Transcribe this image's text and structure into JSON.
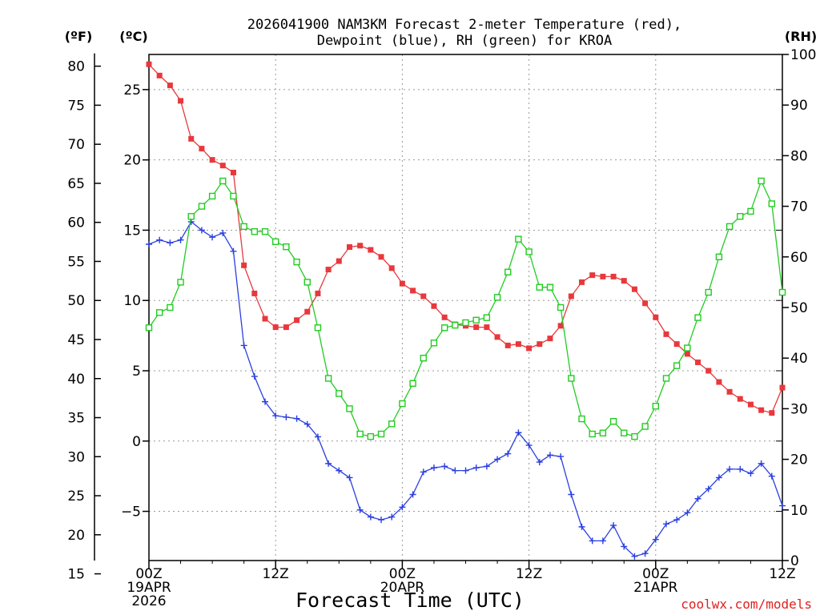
{
  "chart_data": {
    "type": "line",
    "title_lines": [
      "2026041900 NAM3KM Forecast 2-meter Temperature (red),",
      "Dewpoint (blue), RH (green) for KROA"
    ],
    "xlabel": "Forecast Time (UTC)",
    "credit": "coolwx.com/models",
    "unit_labels": {
      "fahrenheit": "(ºF)",
      "celsius": "(ºC)",
      "rh": "(RH)"
    },
    "x_range_hours": [
      0,
      60
    ],
    "x_ticks": [
      {
        "hour": 0,
        "lines": [
          "00Z",
          "19APR",
          "2026"
        ]
      },
      {
        "hour": 12,
        "lines": [
          "12Z"
        ]
      },
      {
        "hour": 24,
        "lines": [
          "00Z",
          "20APR"
        ]
      },
      {
        "hour": 36,
        "lines": [
          "12Z"
        ]
      },
      {
        "hour": 48,
        "lines": [
          "00Z",
          "21APR"
        ]
      },
      {
        "hour": 60,
        "lines": [
          "12Z"
        ]
      }
    ],
    "y_celsius": {
      "range": [
        -8.5,
        27.5
      ],
      "ticks": [
        -5,
        0,
        5,
        10,
        15,
        20,
        25
      ],
      "labels": [
        "−5",
        "0",
        "5",
        "10",
        "15",
        "20",
        "25"
      ]
    },
    "y_fahrenheit": {
      "ticks": [
        15,
        20,
        25,
        30,
        35,
        40,
        45,
        50,
        55,
        60,
        65,
        70,
        75,
        80
      ],
      "labels": [
        "15",
        "20",
        "25",
        "30",
        "35",
        "40",
        "45",
        "50",
        "55",
        "60",
        "65",
        "70",
        "75",
        "80"
      ]
    },
    "y_rh": {
      "range": [
        0,
        100
      ],
      "ticks": [
        0,
        10,
        20,
        30,
        40,
        50,
        60,
        70,
        80,
        90,
        100
      ],
      "labels": [
        "0",
        "10",
        "20",
        "30",
        "40",
        "50",
        "60",
        "70",
        "80",
        "90",
        "100"
      ]
    },
    "series": [
      {
        "name": "2-meter Temperature",
        "axis": "celsius",
        "color": "#e8383c",
        "marker": "filled-square",
        "values": [
          26.8,
          26.0,
          25.3,
          24.2,
          21.5,
          20.8,
          20.0,
          19.6,
          19.1,
          12.5,
          10.5,
          8.7,
          8.1,
          8.1,
          8.6,
          9.2,
          10.5,
          12.2,
          12.8,
          13.8,
          13.9,
          13.6,
          13.1,
          12.3,
          11.2,
          10.7,
          10.3,
          9.6,
          8.8,
          8.3,
          8.2,
          8.1,
          8.1,
          7.4,
          6.8,
          6.9,
          6.6,
          6.9,
          7.3,
          8.2,
          10.3,
          11.3,
          11.8,
          11.7,
          11.7,
          11.4,
          10.8,
          9.8,
          8.8,
          7.6,
          6.9,
          6.2,
          5.6,
          5.0,
          4.2,
          3.5,
          3.0,
          2.6,
          2.2,
          2.0,
          3.8
        ]
      },
      {
        "name": "Dewpoint",
        "axis": "celsius",
        "color": "#2a3fe0",
        "marker": "plus",
        "values": [
          14.0,
          14.3,
          14.1,
          14.3,
          15.6,
          15.0,
          14.5,
          14.8,
          13.5,
          6.8,
          4.6,
          2.8,
          1.8,
          1.7,
          1.6,
          1.2,
          0.3,
          -1.6,
          -2.1,
          -2.6,
          -4.9,
          -5.4,
          -5.6,
          -5.4,
          -4.7,
          -3.8,
          -2.2,
          -1.9,
          -1.8,
          -2.1,
          -2.1,
          -1.9,
          -1.8,
          -1.3,
          -0.9,
          0.6,
          -0.3,
          -1.5,
          -1.0,
          -1.1,
          -3.8,
          -6.1,
          -7.1,
          -7.1,
          -6.0,
          -7.5,
          -8.2,
          -8.0,
          -7.0,
          -5.9,
          -5.6,
          -5.1,
          -4.1,
          -3.4,
          -2.6,
          -2.0,
          -2.0,
          -2.3,
          -1.6,
          -2.5,
          -4.6
        ]
      },
      {
        "name": "RH",
        "axis": "rh",
        "color": "#22cc22",
        "marker": "open-square",
        "values": [
          46,
          49,
          50,
          55,
          68,
          70,
          72,
          75,
          72,
          66,
          65,
          65,
          63,
          62,
          59,
          55,
          46,
          36,
          33,
          30,
          25,
          24.5,
          25,
          27,
          31,
          35,
          40,
          43,
          46,
          46.5,
          47,
          47.5,
          48,
          52,
          57,
          63.5,
          61,
          54,
          54,
          50,
          36,
          28,
          25,
          25.2,
          27.5,
          25.2,
          24.5,
          26.5,
          30.5,
          36,
          38.5,
          42,
          48,
          53,
          60,
          66,
          68,
          69,
          75,
          70.5,
          53
        ]
      }
    ]
  }
}
